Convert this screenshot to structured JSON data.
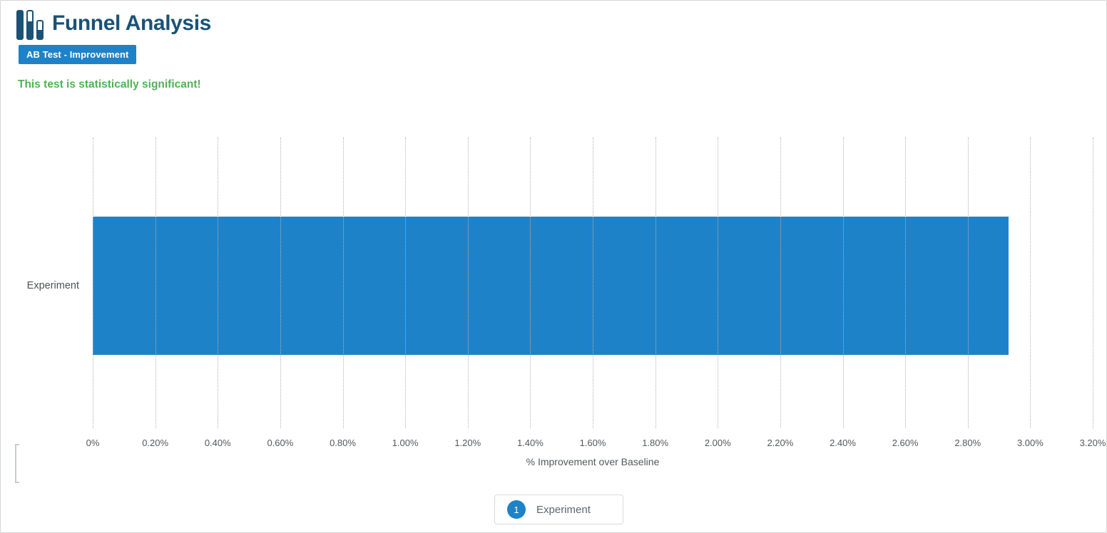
{
  "header": {
    "title": "Funnel Analysis",
    "badge": "AB Test - Improvement",
    "status_message": "This test is statistically significant!"
  },
  "chart_data": {
    "type": "bar",
    "orientation": "horizontal",
    "categories": [
      "Experiment"
    ],
    "series": [
      {
        "name": "Experiment",
        "values": [
          2.93
        ]
      }
    ],
    "values": [
      2.93
    ],
    "value_unit": "%",
    "xlabel": "% Improvement over Baseline",
    "ylabel": "",
    "xlim": [
      0,
      3.2
    ],
    "x_tick_step": 0.2,
    "x_ticks": [
      "0%",
      "0.20%",
      "0.40%",
      "0.60%",
      "0.80%",
      "1.00%",
      "1.20%",
      "1.40%",
      "1.60%",
      "1.80%",
      "2.00%",
      "2.20%",
      "2.40%",
      "2.60%",
      "2.80%",
      "3.00%",
      "3.20%"
    ],
    "grid": "vertical-dotted",
    "legend_position": "bottom-center",
    "legend": [
      {
        "marker": "1",
        "label": "Experiment"
      }
    ],
    "bar_color": "#1e82c8"
  },
  "colors": {
    "accent_blue": "#1e82c8",
    "title_navy": "#1a5276",
    "success_green": "#52b156",
    "tick_gray": "#54585c",
    "grid_gray": "#b3b3b3",
    "page_border": "#d6d6d6",
    "legend_border": "#d6dadd"
  }
}
